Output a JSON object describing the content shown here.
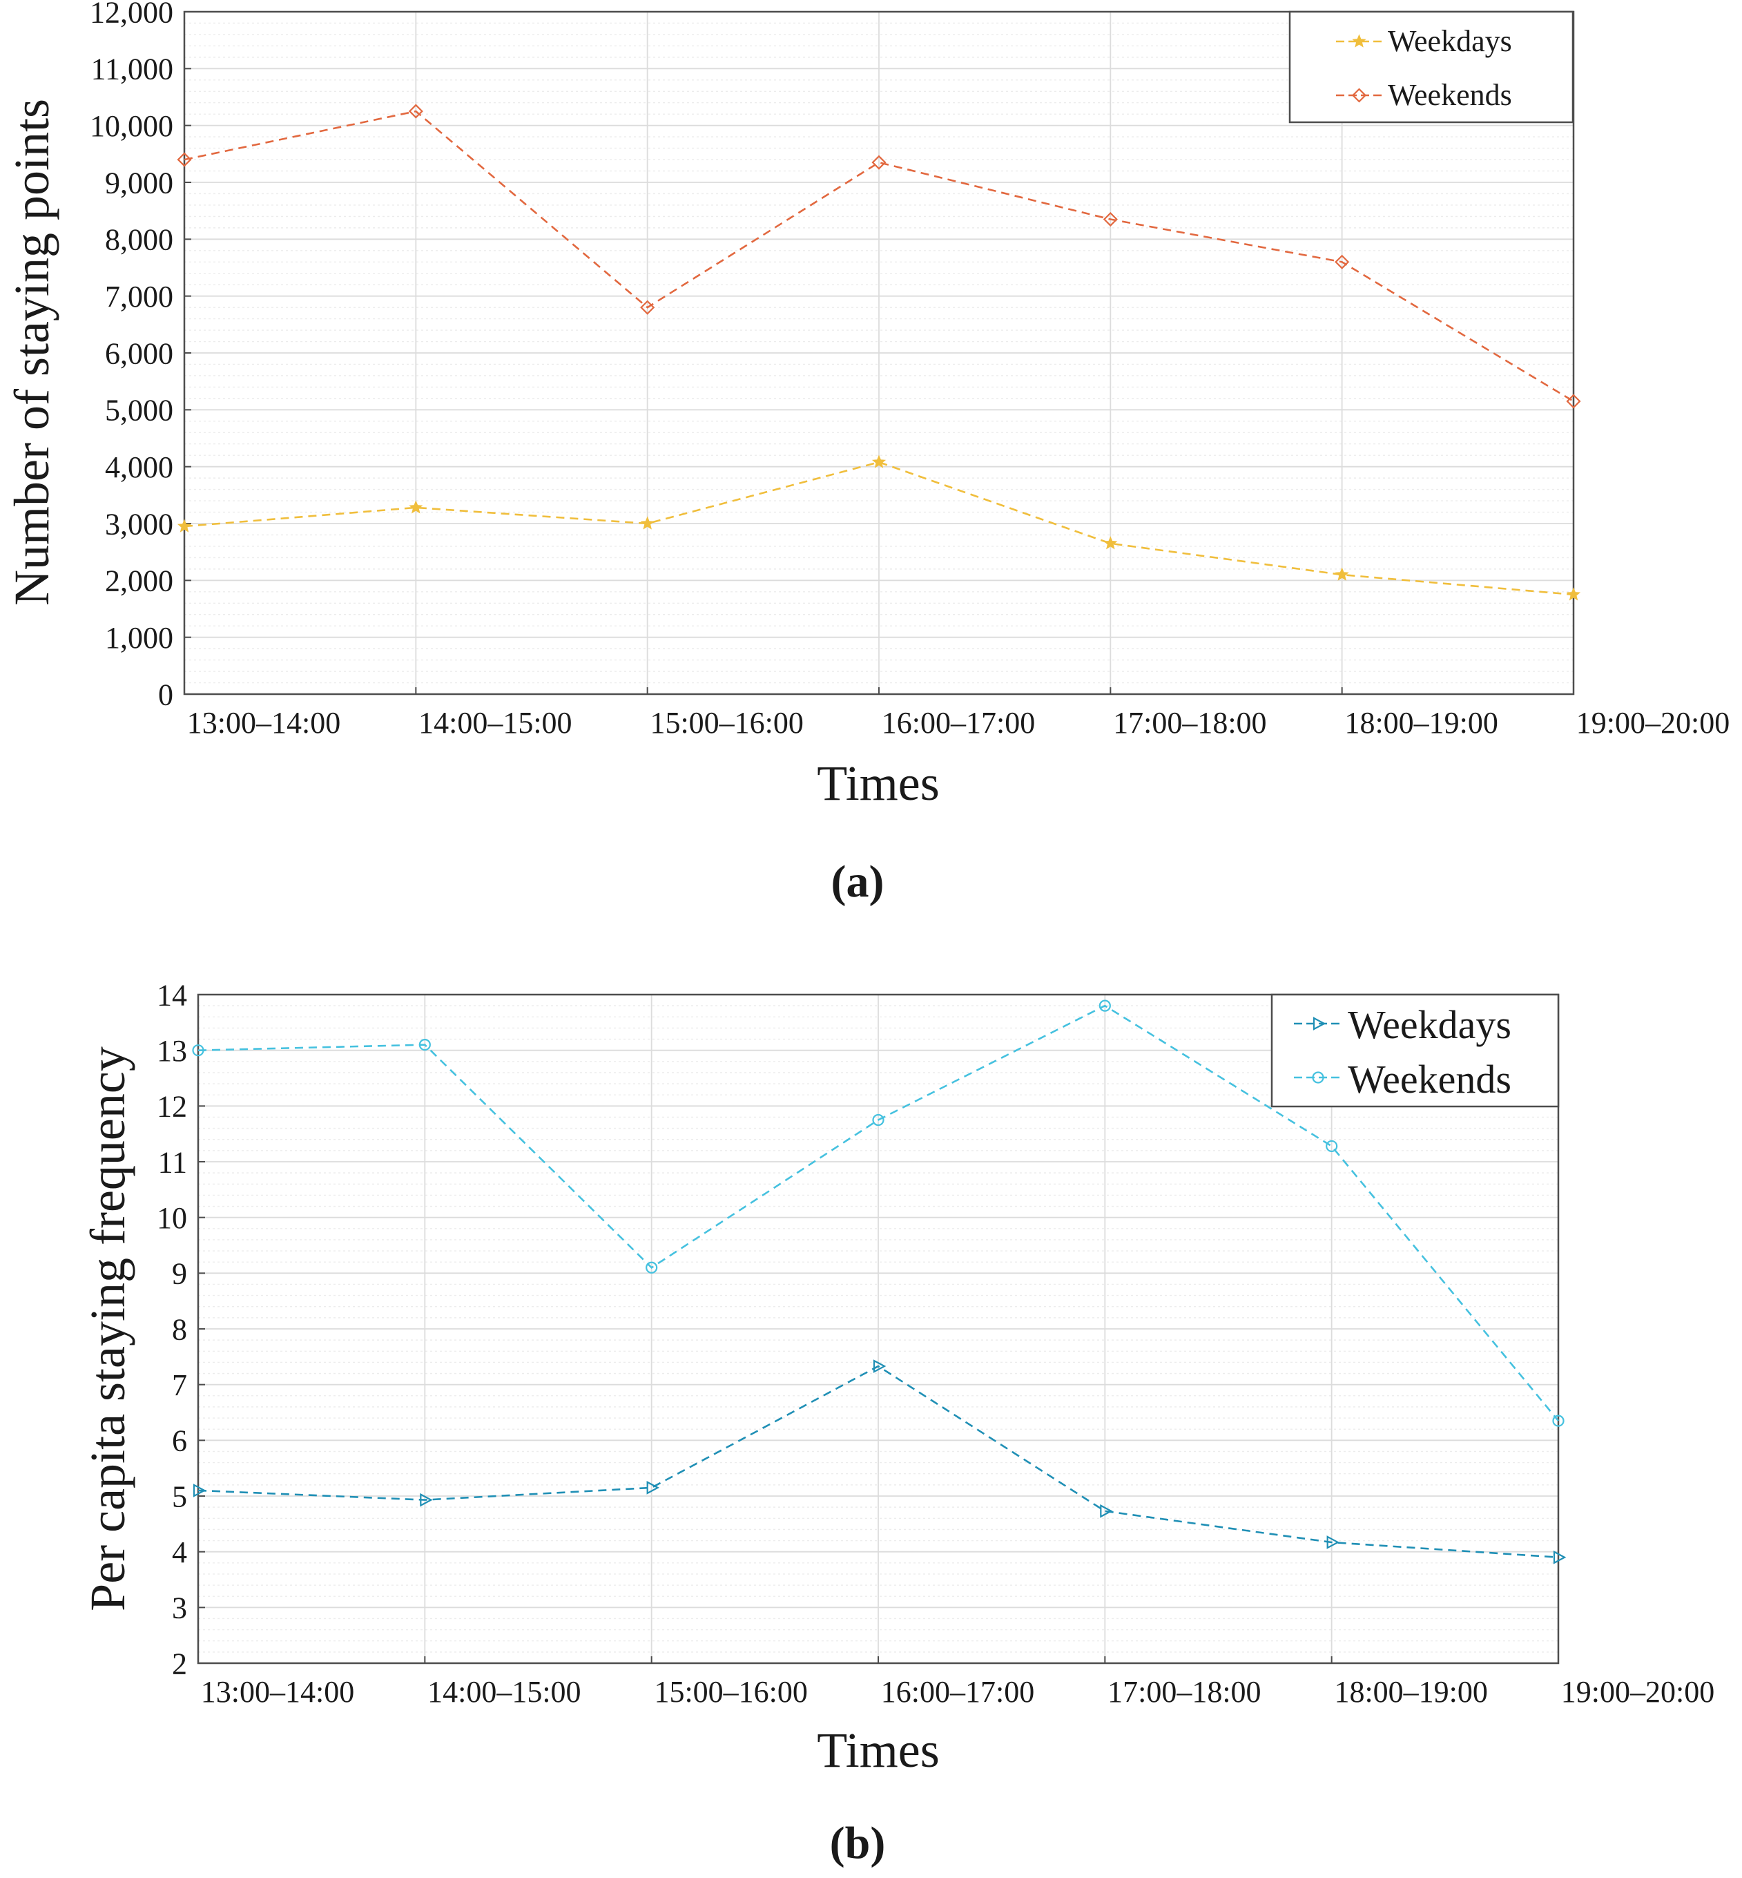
{
  "chart_data": [
    {
      "type": "line",
      "panel_label": "(a)",
      "xlabel": "Times",
      "ylabel": "Number of staying points",
      "categories": [
        "13:00–14:00",
        "14:00–15:00",
        "15:00–16:00",
        "16:00–17:00",
        "17:00–18:00",
        "18:00–19:00",
        "19:00–20:00"
      ],
      "ylim": [
        0,
        12000
      ],
      "yticks": [
        0,
        1000,
        2000,
        3000,
        4000,
        5000,
        6000,
        7000,
        8000,
        9000,
        10000,
        11000,
        12000
      ],
      "ytick_labels": [
        "0",
        "1,000",
        "2,000",
        "3,000",
        "4,000",
        "5,000",
        "6,000",
        "7,000",
        "8,000",
        "9,000",
        "10,000",
        "11,000",
        "12,000"
      ],
      "grid": true,
      "legend_position": "top-right",
      "series": [
        {
          "name": "Weekdays",
          "color": "#F0BE3C",
          "marker": "star",
          "values": [
            2950,
            3280,
            3000,
            4080,
            2650,
            2100,
            1750
          ]
        },
        {
          "name": "Weekends",
          "color": "#E2683F",
          "marker": "diamond",
          "values": [
            9400,
            10250,
            6800,
            9350,
            8350,
            7600,
            5150
          ]
        }
      ]
    },
    {
      "type": "line",
      "panel_label": "(b)",
      "xlabel": "Times",
      "ylabel": "Per capita staying frequency",
      "categories": [
        "13:00–14:00",
        "14:00–15:00",
        "15:00–16:00",
        "16:00–17:00",
        "17:00–18:00",
        "18:00–19:00",
        "19:00–20:00"
      ],
      "ylim": [
        2,
        14
      ],
      "yticks": [
        2,
        3,
        4,
        5,
        6,
        7,
        8,
        9,
        10,
        11,
        12,
        13,
        14
      ],
      "ytick_labels": [
        "2",
        "3",
        "4",
        "5",
        "6",
        "7",
        "8",
        "9",
        "10",
        "11",
        "12",
        "13",
        "14"
      ],
      "grid": true,
      "legend_position": "top-right",
      "series": [
        {
          "name": "Weekdays",
          "color": "#1F8FB5",
          "marker": "triangle-right",
          "values": [
            5.1,
            4.93,
            5.15,
            7.33,
            4.73,
            4.17,
            3.9
          ]
        },
        {
          "name": "Weekends",
          "color": "#45C1DF",
          "marker": "circle",
          "values": [
            13.0,
            13.1,
            9.1,
            11.75,
            13.8,
            11.28,
            6.35
          ]
        }
      ]
    }
  ]
}
